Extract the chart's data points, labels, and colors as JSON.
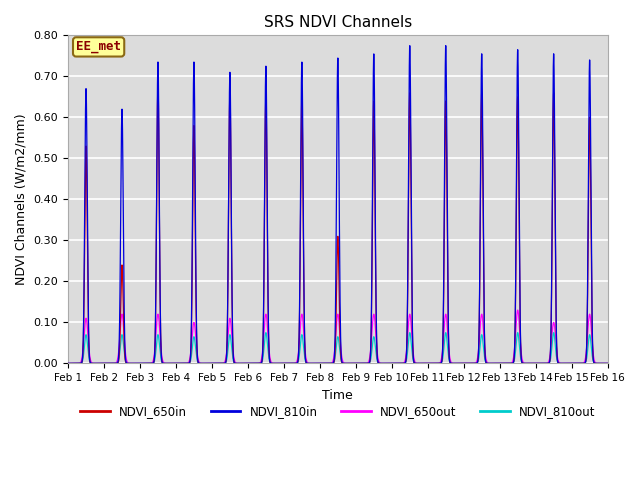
{
  "title": "SRS NDVI Channels",
  "xlabel": "Time",
  "ylabel": "NDVI Channels (W/m2/mm)",
  "ylim": [
    0.0,
    0.8
  ],
  "xlim_days": [
    1,
    16
  ],
  "background_color": "#dcdcdc",
  "grid_color": "white",
  "annotation_text": "EE_met",
  "annotation_color": "#8b0000",
  "annotation_bg": "#ffff99",
  "annotation_border": "#8b6914",
  "lines": {
    "NDVI_650in": {
      "color": "#cc0000",
      "label": "NDVI_650in"
    },
    "NDVI_810in": {
      "color": "#0000dd",
      "label": "NDVI_810in"
    },
    "NDVI_650out": {
      "color": "#ff00ff",
      "label": "NDVI_650out"
    },
    "NDVI_810out": {
      "color": "#00cccc",
      "label": "NDVI_810out"
    }
  },
  "day_peaks_810in": [
    0.67,
    0.62,
    0.735,
    0.735,
    0.71,
    0.725,
    0.735,
    0.745,
    0.755,
    0.775,
    0.775,
    0.755,
    0.765,
    0.755,
    0.74
  ],
  "day_peaks_650in": [
    0.53,
    0.24,
    0.68,
    0.58,
    0.66,
    0.65,
    0.64,
    0.31,
    0.64,
    0.66,
    0.64,
    0.66,
    0.65,
    0.66,
    0.6
  ],
  "day_peaks_650out": [
    0.11,
    0.12,
    0.12,
    0.1,
    0.11,
    0.12,
    0.12,
    0.12,
    0.12,
    0.12,
    0.12,
    0.12,
    0.13,
    0.1,
    0.12
  ],
  "day_peaks_810out": [
    0.07,
    0.07,
    0.07,
    0.065,
    0.07,
    0.075,
    0.07,
    0.065,
    0.065,
    0.075,
    0.075,
    0.07,
    0.075,
    0.075,
    0.07
  ],
  "samples_per_day": 500,
  "peak_sigma_in": 0.035,
  "peak_sigma_out": 0.055,
  "tick_labels": [
    "Feb 1",
    "Feb 2",
    "Feb 3",
    "Feb 4",
    "Feb 5",
    "Feb 6",
    "Feb 7",
    "Feb 8",
    "Feb 9",
    "Feb 10",
    "Feb 11",
    "Feb 12",
    "Feb 13",
    "Feb 14",
    "Feb 15",
    "Feb 16"
  ],
  "tick_positions": [
    1,
    2,
    3,
    4,
    5,
    6,
    7,
    8,
    9,
    10,
    11,
    12,
    13,
    14,
    15,
    16
  ],
  "yticks": [
    0.0,
    0.1,
    0.2,
    0.3,
    0.4,
    0.5,
    0.6,
    0.7,
    0.8
  ],
  "fig_width": 6.4,
  "fig_height": 4.8,
  "dpi": 100
}
